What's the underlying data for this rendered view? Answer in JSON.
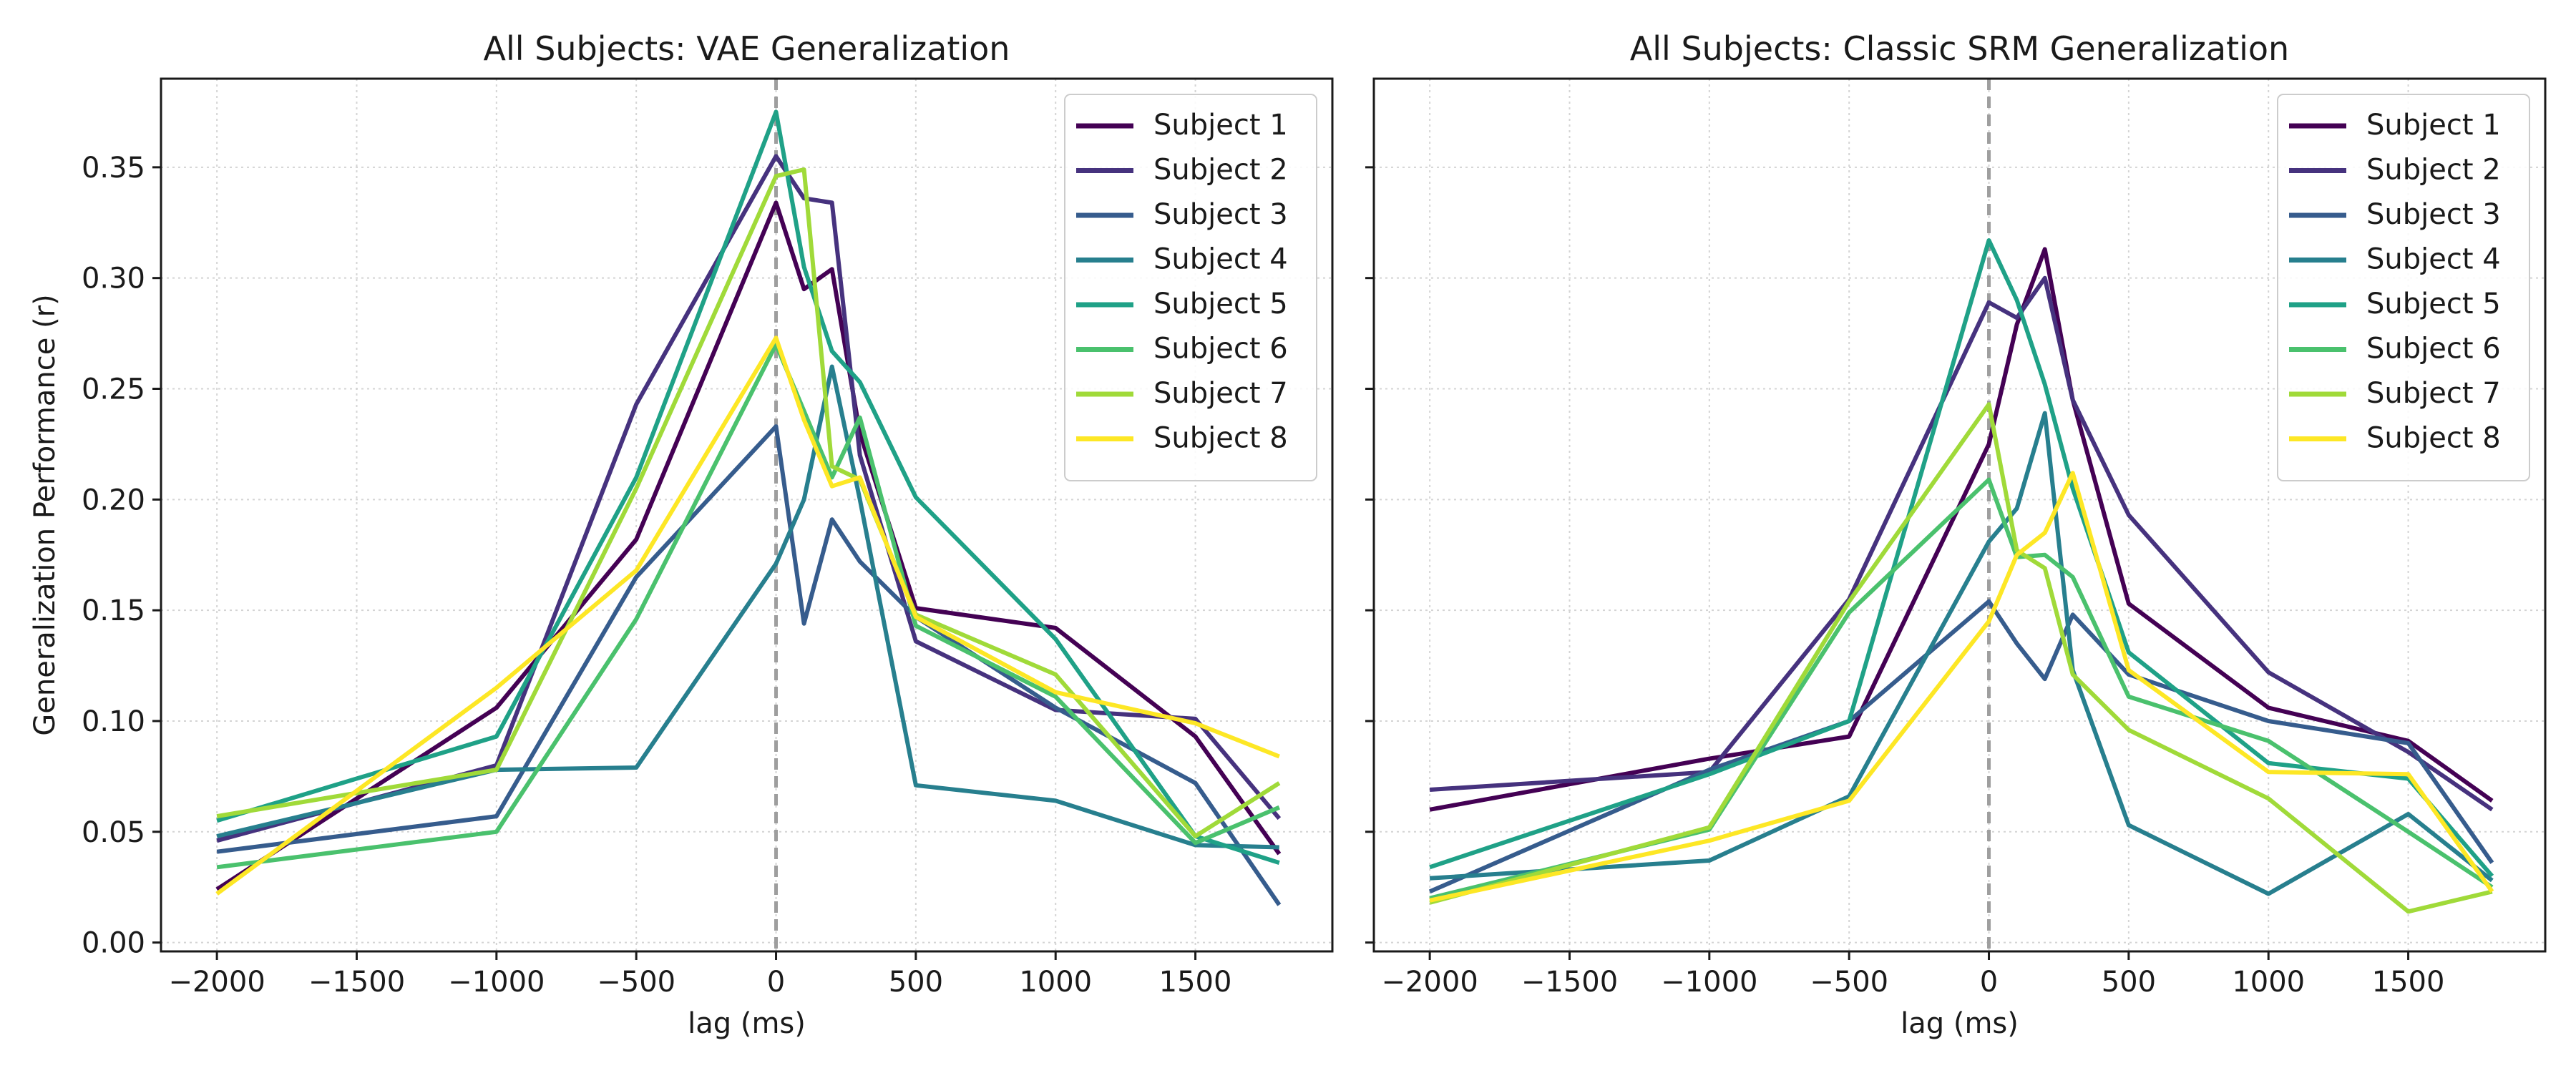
{
  "chart_data": [
    {
      "type": "line",
      "title": "All Subjects: VAE Generalization",
      "xlabel": "lag (ms)",
      "ylabel": "Generalization Performance (r)",
      "xlim": [
        -2200,
        1990
      ],
      "ylim": [
        -0.004,
        0.39
      ],
      "xticks": [
        -2000,
        -1500,
        -1000,
        -500,
        0,
        500,
        1000,
        1500
      ],
      "xtick_labels": [
        "−2000",
        "−1500",
        "−1000",
        "−500",
        "0",
        "500",
        "1000",
        "1500"
      ],
      "yticks": [
        0.0,
        0.05,
        0.1,
        0.15,
        0.2,
        0.25,
        0.3,
        0.35
      ],
      "ytick_labels": [
        "0.00",
        "0.05",
        "0.10",
        "0.15",
        "0.20",
        "0.25",
        "0.30",
        "0.35"
      ],
      "grid": true,
      "vline_x": 0,
      "legend_position": "top-right",
      "x": [
        -2000,
        -1000,
        -500,
        0,
        100,
        200,
        300,
        500,
        1000,
        1500,
        1800
      ],
      "series": [
        {
          "name": "Subject 1",
          "color": "#440154",
          "values": [
            0.024,
            0.106,
            0.182,
            0.334,
            0.295,
            0.304,
            0.23,
            0.151,
            0.142,
            0.093,
            0.04
          ]
        },
        {
          "name": "Subject 2",
          "color": "#46327e",
          "values": [
            0.046,
            0.08,
            0.243,
            0.355,
            0.336,
            0.334,
            0.22,
            0.136,
            0.105,
            0.101,
            0.056
          ]
        },
        {
          "name": "Subject 3",
          "color": "#365c8d",
          "values": [
            0.041,
            0.057,
            0.165,
            0.233,
            0.144,
            0.191,
            0.172,
            0.147,
            0.106,
            0.072,
            0.017
          ]
        },
        {
          "name": "Subject 4",
          "color": "#277f8e",
          "values": [
            0.048,
            0.078,
            0.079,
            0.171,
            0.2,
            0.26,
            0.2,
            0.071,
            0.064,
            0.044,
            0.043
          ]
        },
        {
          "name": "Subject 5",
          "color": "#1fa187",
          "values": [
            0.055,
            0.093,
            0.21,
            0.375,
            0.305,
            0.267,
            0.253,
            0.201,
            0.137,
            0.048,
            0.036
          ]
        },
        {
          "name": "Subject 6",
          "color": "#4ac16d",
          "values": [
            0.034,
            0.05,
            0.146,
            0.27,
            0.24,
            0.21,
            0.237,
            0.143,
            0.111,
            0.045,
            0.061
          ]
        },
        {
          "name": "Subject 7",
          "color": "#a0da39",
          "values": [
            0.057,
            0.078,
            0.205,
            0.346,
            0.349,
            0.215,
            0.209,
            0.148,
            0.121,
            0.048,
            0.072
          ]
        },
        {
          "name": "Subject 8",
          "color": "#fde725",
          "values": [
            0.022,
            0.115,
            0.168,
            0.273,
            0.236,
            0.206,
            0.21,
            0.147,
            0.113,
            0.099,
            0.084
          ]
        }
      ]
    },
    {
      "type": "line",
      "title": "All Subjects: Classic SRM Generalization",
      "xlabel": "lag (ms)",
      "ylabel": "",
      "xlim": [
        -2200,
        1990
      ],
      "ylim": [
        -0.004,
        0.39
      ],
      "xticks": [
        -2000,
        -1500,
        -1000,
        -500,
        0,
        500,
        1000,
        1500
      ],
      "xtick_labels": [
        "−2000",
        "−1500",
        "−1000",
        "−500",
        "0",
        "500",
        "1000",
        "1500"
      ],
      "yticks": [
        0.0,
        0.05,
        0.1,
        0.15,
        0.2,
        0.25,
        0.3,
        0.35
      ],
      "ytick_labels": [],
      "grid": true,
      "vline_x": 0,
      "legend_position": "top-right",
      "x": [
        -2000,
        -1000,
        -500,
        0,
        100,
        200,
        300,
        500,
        1000,
        1500,
        1800
      ],
      "series": [
        {
          "name": "Subject 1",
          "color": "#440154",
          "values": [
            0.06,
            0.083,
            0.093,
            0.225,
            0.279,
            0.313,
            0.245,
            0.153,
            0.106,
            0.091,
            0.064
          ]
        },
        {
          "name": "Subject 2",
          "color": "#46327e",
          "values": [
            0.069,
            0.077,
            0.155,
            0.289,
            0.282,
            0.3,
            0.245,
            0.193,
            0.122,
            0.086,
            0.06
          ]
        },
        {
          "name": "Subject 3",
          "color": "#365c8d",
          "values": [
            0.023,
            0.078,
            0.1,
            0.154,
            0.135,
            0.119,
            0.148,
            0.121,
            0.1,
            0.09,
            0.036
          ]
        },
        {
          "name": "Subject 4",
          "color": "#277f8e",
          "values": [
            0.029,
            0.037,
            0.066,
            0.181,
            0.196,
            0.239,
            0.123,
            0.053,
            0.022,
            0.058,
            0.028
          ]
        },
        {
          "name": "Subject 5",
          "color": "#1fa187",
          "values": [
            0.034,
            0.076,
            0.1,
            0.317,
            0.29,
            0.252,
            0.205,
            0.131,
            0.081,
            0.074,
            0.03
          ]
        },
        {
          "name": "Subject 6",
          "color": "#4ac16d",
          "values": [
            0.02,
            0.051,
            0.149,
            0.209,
            0.174,
            0.175,
            0.165,
            0.111,
            0.091,
            0.05,
            0.025
          ]
        },
        {
          "name": "Subject 7",
          "color": "#a0da39",
          "values": [
            0.018,
            0.052,
            0.154,
            0.243,
            0.177,
            0.169,
            0.121,
            0.096,
            0.065,
            0.014,
            0.023
          ]
        },
        {
          "name": "Subject 8",
          "color": "#fde725",
          "values": [
            0.019,
            0.046,
            0.064,
            0.145,
            0.175,
            0.185,
            0.212,
            0.123,
            0.077,
            0.076,
            0.023
          ]
        }
      ]
    }
  ]
}
